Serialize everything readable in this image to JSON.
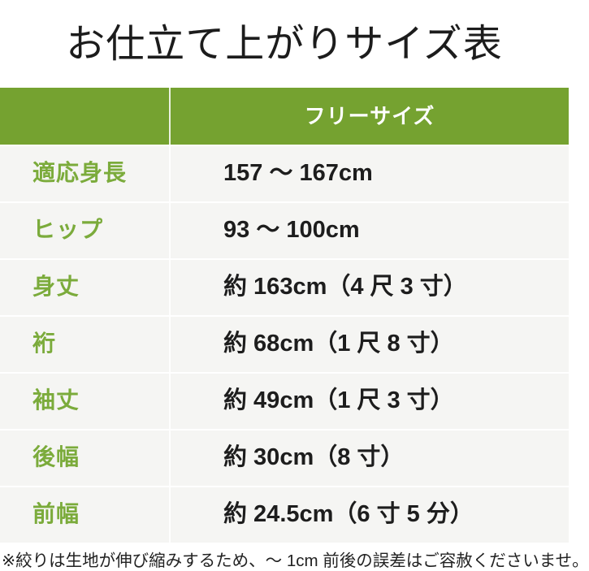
{
  "title": "お仕立て上がりサイズ表",
  "table": {
    "header": {
      "value_column": "フリーサイズ"
    },
    "rows": [
      {
        "label": "適応身長",
        "value": "157 ～ 167cm"
      },
      {
        "label": "ヒップ",
        "value": "93 ～ 100cm"
      },
      {
        "label": "身丈",
        "value": "約 163cm（4 尺 3 寸）"
      },
      {
        "label": "裄",
        "value": "約 68cm（1 尺 8 寸）"
      },
      {
        "label": "袖丈",
        "value": "約 49cm（1 尺 3 寸）"
      },
      {
        "label": "後幅",
        "value": "約 30cm（8 寸）"
      },
      {
        "label": "前幅",
        "value": "約 24.5cm（6 寸 5 分）"
      }
    ]
  },
  "footnote": "※絞りは生地が伸び縮みするため、～ 1cm 前後の誤差はご容赦くださいませ。",
  "colors": {
    "header_bg": "#75A230",
    "label_text": "#7BAB3B",
    "row_bg": "#F5F5F3",
    "divider": "#FFFFFF",
    "title_text": "#1C1C1C",
    "value_text": "#1D1D1D"
  }
}
